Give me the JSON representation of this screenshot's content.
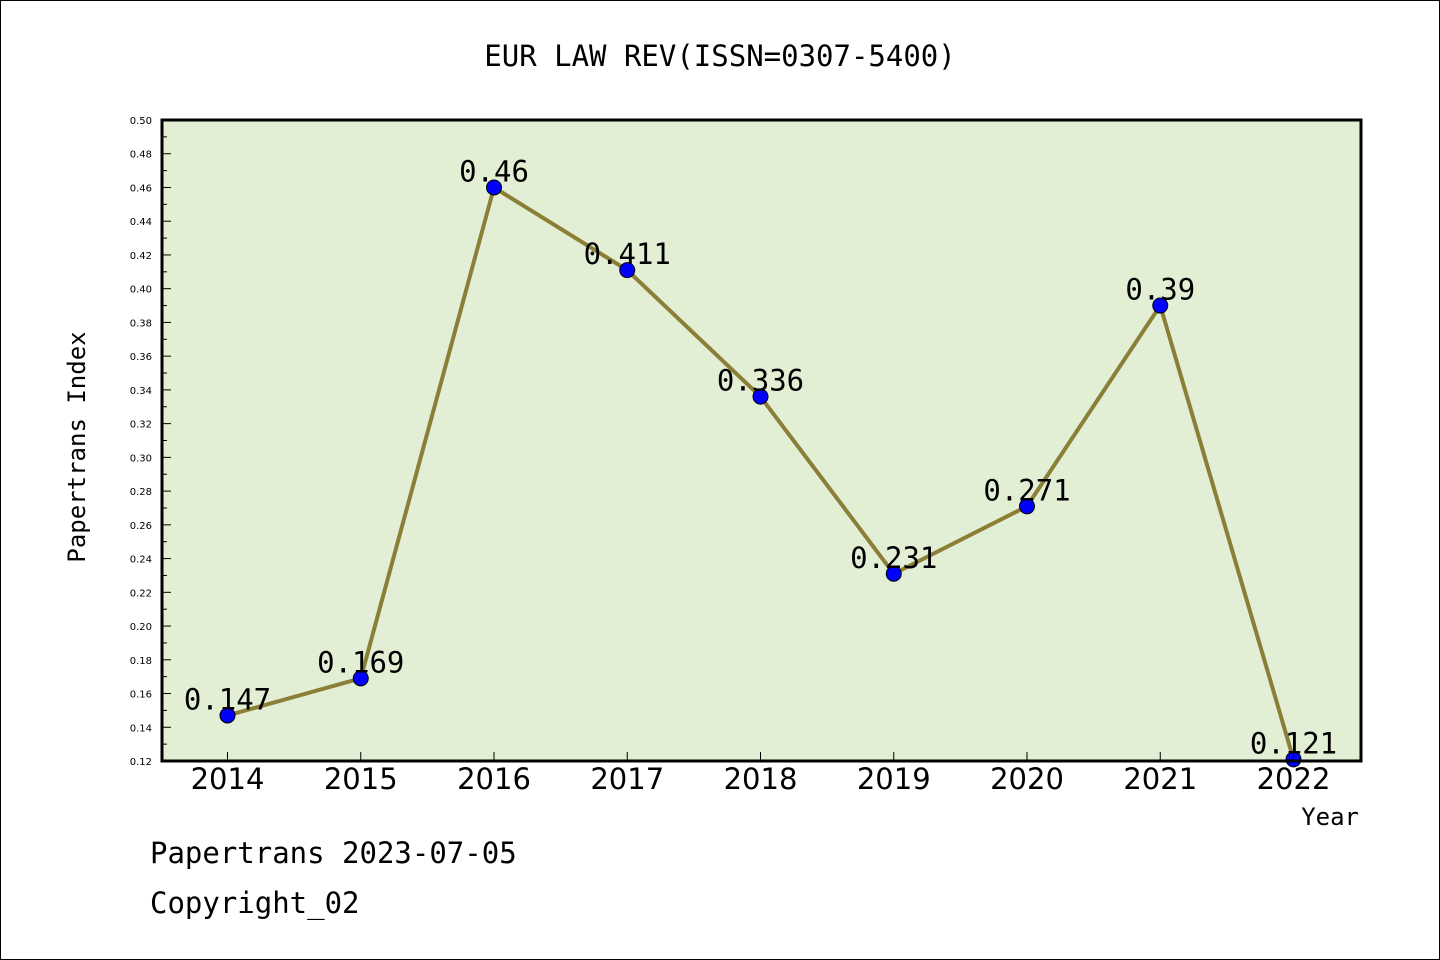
{
  "chart_data": {
    "type": "line",
    "title": "EUR LAW REV(ISSN=0307-5400)",
    "xlabel": "Year",
    "ylabel": "Papertrans Index",
    "categories": [
      "2014",
      "2015",
      "2016",
      "2017",
      "2018",
      "2019",
      "2020",
      "2021",
      "2022"
    ],
    "series": [
      {
        "values": [
          0.147,
          0.169,
          0.46,
          0.411,
          0.336,
          0.231,
          0.271,
          0.39,
          0.121
        ],
        "labels": [
          "0.147",
          "0.169",
          "0.46",
          "0.411",
          "0.336",
          "0.231",
          "0.271",
          "0.39",
          "0.121"
        ]
      }
    ],
    "ylim": [
      0.12,
      0.5
    ],
    "yticks": [
      "0.12",
      "0.14",
      "0.16",
      "0.18",
      "0.20",
      "0.22",
      "0.24",
      "0.26",
      "0.28",
      "0.30",
      "0.32",
      "0.34",
      "0.36",
      "0.38",
      "0.40",
      "0.42",
      "0.44",
      "0.46",
      "0.48",
      "0.50"
    ],
    "grid": false,
    "colors": {
      "plot_background": "#e2efd5",
      "line": "#8b7f38",
      "marker": "#0000ff"
    }
  },
  "footer": {
    "line1": "Papertrans 2023-07-05",
    "line2": "Copyright_02"
  }
}
